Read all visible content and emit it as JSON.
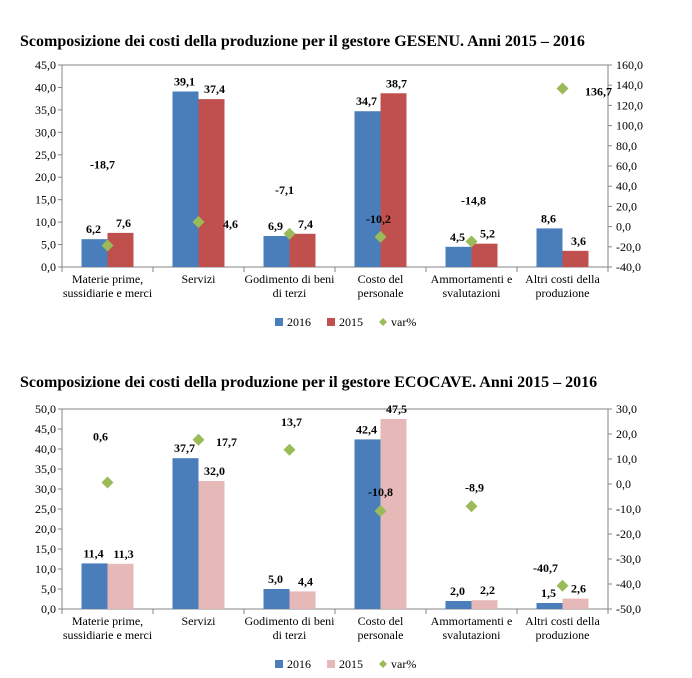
{
  "chart_data": [
    {
      "type": "bar",
      "title": "Scomposizione dei costi della produzione per il gestore GESENU. Anni 2015 – 2016",
      "categories": [
        [
          "Materie prime,",
          "sussidiarie e merci"
        ],
        [
          "Servizi"
        ],
        [
          "Godimento di beni",
          "di terzi"
        ],
        [
          "Costo del",
          "personale"
        ],
        [
          "Ammortamenti e",
          "svalutazioni"
        ],
        [
          "Altri costi della",
          "produzione"
        ]
      ],
      "y_left": {
        "min": 0,
        "max": 45,
        "step": 5,
        "ticks": [
          "0,0",
          "5,0",
          "10,0",
          "15,0",
          "20,0",
          "25,0",
          "30,0",
          "35,0",
          "40,0",
          "45,0"
        ]
      },
      "y_right": {
        "min": -40,
        "max": 160,
        "step": 20,
        "ticks": [
          "-40,0",
          "-20,0",
          "0,0",
          "20,0",
          "40,0",
          "60,0",
          "80,0",
          "100,0",
          "120,0",
          "140,0",
          "160,0"
        ]
      },
      "series": [
        {
          "name": "2016",
          "axis": "left",
          "values": [
            6.2,
            39.1,
            6.9,
            34.7,
            4.5,
            8.6
          ],
          "labels": [
            "6,2",
            "39,1",
            "6,9",
            "34,7",
            "4,5",
            "8,6"
          ],
          "color": "#4a7ebb"
        },
        {
          "name": "2015",
          "axis": "left",
          "values": [
            7.6,
            37.4,
            7.4,
            38.7,
            5.2,
            3.6
          ],
          "labels": [
            "7,6",
            "37,4",
            "7,4",
            "38,7",
            "5,2",
            "3,6"
          ],
          "color": "#c0504d"
        },
        {
          "name": "var%",
          "axis": "right",
          "kind": "marker",
          "values": [
            -18.7,
            4.6,
            -7.1,
            -10.2,
            -14.8,
            136.7
          ],
          "labels": [
            "-18,7",
            "4,6",
            "-7,1",
            "-10,2",
            "-14,8",
            "136,7"
          ],
          "color": "#9bbb59"
        }
      ],
      "legend": [
        "2016",
        "2015",
        "var%"
      ],
      "legend_position": "bottom",
      "grid": false
    },
    {
      "type": "bar",
      "title": "Scomposizione dei costi della produzione per il gestore ECOCAVE. Anni 2015 – 2016",
      "categories": [
        [
          "Materie prime,",
          "sussidiarie e merci"
        ],
        [
          "Servizi"
        ],
        [
          "Godimento di beni",
          "di terzi"
        ],
        [
          "Costo del",
          "personale"
        ],
        [
          "Ammortamenti e",
          "svalutazioni"
        ],
        [
          "Altri costi della",
          "produzione"
        ]
      ],
      "y_left": {
        "min": 0,
        "max": 50,
        "step": 5,
        "ticks": [
          "0,0",
          "5,0",
          "10,0",
          "15,0",
          "20,0",
          "25,0",
          "30,0",
          "35,0",
          "40,0",
          "45,0",
          "50,0"
        ]
      },
      "y_right": {
        "min": -50,
        "max": 30,
        "step": 10,
        "ticks": [
          "-50,0",
          "-40,0",
          "-30,0",
          "-20,0",
          "-10,0",
          "0,0",
          "10,0",
          "20,0",
          "30,0"
        ]
      },
      "series": [
        {
          "name": "2016",
          "axis": "left",
          "values": [
            11.4,
            37.7,
            5.0,
            42.4,
            2.0,
            1.5
          ],
          "labels": [
            "11,4",
            "37,7",
            "5,0",
            "42,4",
            "2,0",
            "1,5"
          ],
          "color": "#4a7ebb"
        },
        {
          "name": "2015",
          "axis": "left",
          "values": [
            11.3,
            32.0,
            4.4,
            47.5,
            2.2,
            2.6
          ],
          "labels": [
            "11,3",
            "32,0",
            "4,4",
            "47,5",
            "2,2",
            "2,6"
          ],
          "color": "#e6b9b8"
        },
        {
          "name": "var%",
          "axis": "right",
          "kind": "marker",
          "values": [
            0.6,
            17.7,
            13.7,
            -10.8,
            -8.9,
            -40.7
          ],
          "labels": [
            "0,6",
            "17,7",
            "13,7",
            "-10,8",
            "-8,9",
            "-40,7"
          ],
          "color": "#9bbb59"
        }
      ],
      "legend": [
        "2016",
        "2015",
        "var%"
      ],
      "legend_position": "bottom",
      "grid": false
    }
  ]
}
